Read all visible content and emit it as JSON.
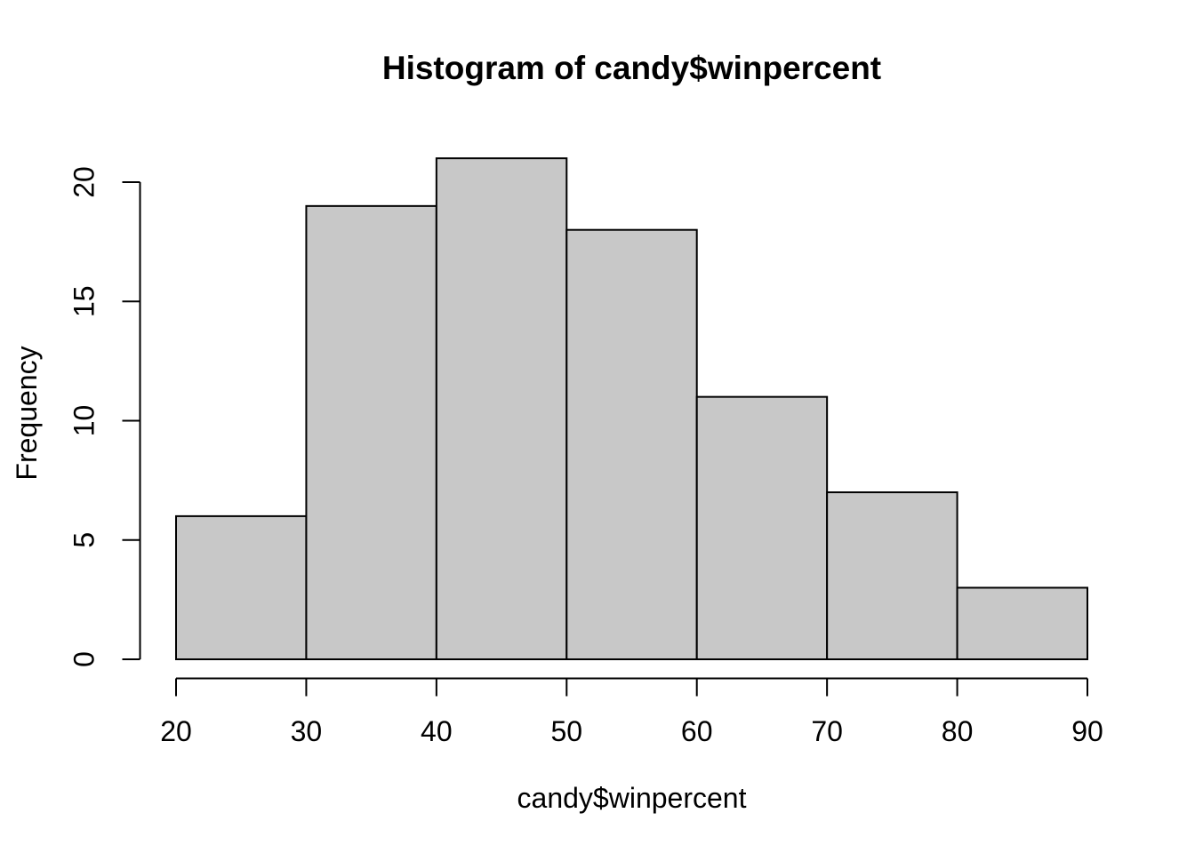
{
  "chart_data": {
    "type": "bar",
    "subtype": "histogram",
    "title": "Histogram of candy$winpercent",
    "xlabel": "candy$winpercent",
    "ylabel": "Frequency",
    "bin_breaks": [
      20,
      30,
      40,
      50,
      60,
      70,
      80,
      90
    ],
    "counts": [
      6,
      19,
      21,
      18,
      11,
      7,
      3
    ],
    "x_ticks": [
      20,
      30,
      40,
      50,
      60,
      70,
      80,
      90
    ],
    "y_ticks": [
      0,
      5,
      10,
      15,
      20
    ],
    "xlim": [
      20,
      90
    ],
    "ylim": [
      0,
      21
    ],
    "grid": false,
    "legend": "none",
    "colors": {
      "bar_fill": "#C8C8C8",
      "bar_stroke": "#000000",
      "axis": "#000000",
      "text": "#000000",
      "background": "#FFFFFF"
    }
  }
}
